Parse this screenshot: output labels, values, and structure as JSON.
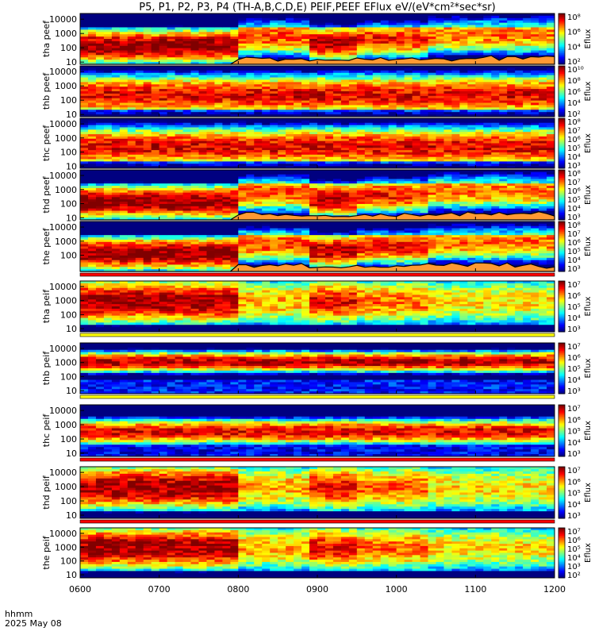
{
  "title": "P5, P1, P2, P3, P4 (TH-A,B,C,D,E) PEIF,PEEF EFlux eV/(eV*cm²*sec*sr)",
  "footer": {
    "line1": "hhmm",
    "line2": "2025 May 08"
  },
  "colors": {
    "red_bar": "#ff0000",
    "black_bar": "#000000",
    "scpot_fill": "#ff9933",
    "scpot_line": "#000000"
  },
  "chart_data": [
    {
      "type": "heatmap",
      "ylabel": "tha peef",
      "colorbar_label": "Eflux",
      "yticks": [
        "10",
        "100",
        "1000",
        "10000"
      ],
      "cbticks": [
        "10²",
        "10⁴",
        "10⁶",
        "10⁸"
      ],
      "x_range": [
        "0600",
        "1200"
      ],
      "y_range_eV": [
        7,
        25000
      ],
      "log_scale": true,
      "has_scpot": true,
      "seed": 11,
      "variant": "active",
      "bars": []
    },
    {
      "type": "heatmap",
      "ylabel": "thb peef",
      "colorbar_label": "Eflux",
      "yticks": [
        "10",
        "100",
        "1000",
        "10000"
      ],
      "cbticks": [
        "10²",
        "10⁴",
        "10⁶",
        "10⁸",
        "10¹⁰"
      ],
      "x_range": [
        "0600",
        "1200"
      ],
      "y_range_eV": [
        7,
        25000
      ],
      "log_scale": true,
      "has_scpot": false,
      "seed": 23,
      "variant": "quiet",
      "bars": []
    },
    {
      "type": "heatmap",
      "ylabel": "thc peef",
      "colorbar_label": "Eflux",
      "yticks": [
        "10",
        "100",
        "1000",
        "10000"
      ],
      "cbticks": [
        "10³",
        "10⁴",
        "10⁵",
        "10⁶",
        "10⁷",
        "10⁸"
      ],
      "x_range": [
        "0600",
        "1200"
      ],
      "y_range_eV": [
        7,
        25000
      ],
      "log_scale": true,
      "has_scpot": false,
      "seed": 37,
      "variant": "quiet",
      "bars": []
    },
    {
      "type": "heatmap",
      "ylabel": "thd peef",
      "colorbar_label": "Eflux",
      "yticks": [
        "10",
        "100",
        "1000",
        "10000"
      ],
      "cbticks": [
        "10³",
        "10⁴",
        "10⁵",
        "10⁶",
        "10⁷",
        "10⁸"
      ],
      "x_range": [
        "0600",
        "1200"
      ],
      "y_range_eV": [
        7,
        25000
      ],
      "log_scale": true,
      "has_scpot": true,
      "seed": 41,
      "variant": "active",
      "bars": []
    },
    {
      "type": "heatmap",
      "ylabel": "the peef",
      "colorbar_label": "Eflux",
      "yticks": [
        "100",
        "1000",
        "10000"
      ],
      "cbticks": [
        "10³",
        "10⁴",
        "10⁵",
        "10⁶",
        "10⁷",
        "10⁸"
      ],
      "x_range": [
        "0600",
        "1200"
      ],
      "y_range_eV": [
        7,
        25000
      ],
      "log_scale": true,
      "has_scpot": true,
      "seed": 53,
      "variant": "active",
      "bars": [
        "red"
      ]
    },
    {
      "type": "heatmap",
      "ylabel": "tha peif",
      "colorbar_label": "Eflux",
      "yticks": [
        "10",
        "100",
        "1000",
        "10000"
      ],
      "cbticks": [
        "10³",
        "10⁴",
        "10⁵",
        "10⁶",
        "10⁷"
      ],
      "x_range": [
        "0600",
        "1200"
      ],
      "y_range_eV": [
        6,
        25000
      ],
      "log_scale": true,
      "has_scpot": false,
      "seed": 61,
      "variant": "ion_active",
      "bars": [
        "yellow"
      ]
    },
    {
      "type": "heatmap",
      "ylabel": "thb peif",
      "colorbar_label": "Eflux",
      "yticks": [
        "10",
        "100",
        "1000",
        "10000"
      ],
      "cbticks": [
        "10³",
        "10⁴",
        "10⁵",
        "10⁶",
        "10⁷"
      ],
      "x_range": [
        "0600",
        "1200"
      ],
      "y_range_eV": [
        6,
        25000
      ],
      "log_scale": true,
      "has_scpot": false,
      "seed": 73,
      "variant": "ion_quiet",
      "bars": [
        "yellow"
      ]
    },
    {
      "type": "heatmap",
      "ylabel": "thc peif",
      "colorbar_label": "Eflux",
      "yticks": [
        "10",
        "100",
        "1000",
        "10000"
      ],
      "cbticks": [
        "10³",
        "10⁴",
        "10⁵",
        "10⁶",
        "10⁷"
      ],
      "x_range": [
        "0600",
        "1200"
      ],
      "y_range_eV": [
        6,
        25000
      ],
      "log_scale": true,
      "has_scpot": false,
      "seed": 89,
      "variant": "ion_quiet2",
      "bars": [
        "red"
      ]
    },
    {
      "type": "heatmap",
      "ylabel": "thd peif",
      "colorbar_label": "Eflux",
      "yticks": [
        "10",
        "100",
        "1000",
        "10000"
      ],
      "cbticks": [
        "10³",
        "10⁴",
        "10⁵",
        "10⁶",
        "10⁷"
      ],
      "x_range": [
        "0600",
        "1200"
      ],
      "y_range_eV": [
        6,
        25000
      ],
      "log_scale": true,
      "has_scpot": false,
      "seed": 97,
      "variant": "ion_active",
      "bars": [
        "red"
      ]
    },
    {
      "type": "heatmap",
      "ylabel": "the peif",
      "colorbar_label": "Eflux",
      "yticks": [
        "10",
        "100",
        "1000",
        "10000"
      ],
      "cbticks": [
        "10²",
        "10³",
        "10⁴",
        "10⁵",
        "10⁶",
        "10⁷"
      ],
      "x_range": [
        "0600",
        "1200"
      ],
      "y_range_eV": [
        6,
        25000
      ],
      "log_scale": true,
      "has_scpot": false,
      "seed": 103,
      "variant": "ion_active",
      "bars": []
    }
  ],
  "x_axis": {
    "ticks": [
      "0600",
      "0700",
      "0800",
      "0900",
      "1000",
      "1100",
      "1200"
    ]
  }
}
